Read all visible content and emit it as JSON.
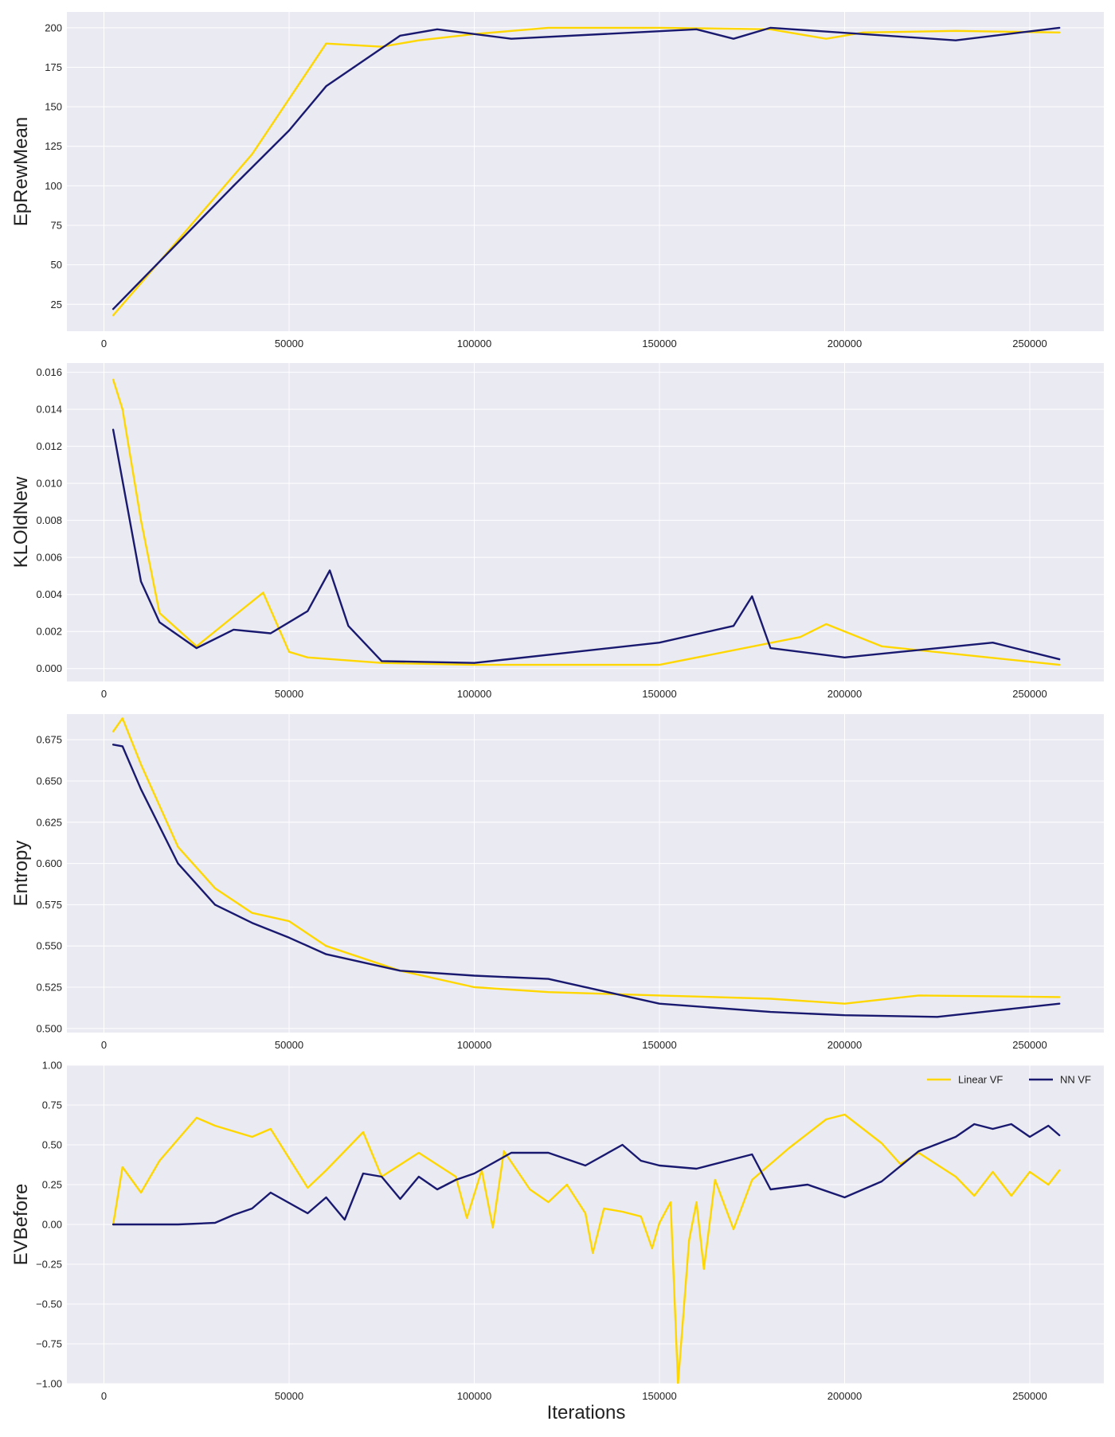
{
  "figure": {
    "xlabel": "Iterations",
    "legend": {
      "placement": "top-right",
      "entries": [
        "Linear VF",
        "NN VF"
      ]
    }
  },
  "colors": {
    "linear": "#FFD700",
    "nn": "#191970",
    "panel_bg": "#EAEAF2",
    "grid": "#FFFFFF",
    "tick_text": "#222222"
  },
  "chart_data": [
    {
      "type": "line",
      "ylabel": "EpRewMean",
      "xlim": [
        -10000,
        270000
      ],
      "ylim": [
        8,
        210
      ],
      "xticks": [
        0,
        50000,
        100000,
        150000,
        200000,
        250000
      ],
      "yticks": [
        25,
        50,
        75,
        100,
        125,
        150,
        175,
        200
      ],
      "ytick_labels": [
        "25",
        "50",
        "75",
        "100",
        "125",
        "150",
        "175",
        "200"
      ],
      "grid": true,
      "series": [
        {
          "name": "Linear VF",
          "x": [
            2500,
            40000,
            60000,
            75000,
            85000,
            100000,
            120000,
            150000,
            180000,
            195000,
            205000,
            230000,
            258000
          ],
          "y": [
            18,
            120,
            190,
            188,
            192,
            196,
            200,
            200,
            199,
            193,
            197,
            198,
            197
          ]
        },
        {
          "name": "NN VF",
          "x": [
            2500,
            35000,
            50000,
            60000,
            80000,
            90000,
            110000,
            160000,
            170000,
            180000,
            230000,
            258000
          ],
          "y": [
            22,
            100,
            135,
            163,
            195,
            199,
            193,
            199,
            193,
            200,
            192,
            200
          ]
        }
      ]
    },
    {
      "type": "line",
      "ylabel": "KLOldNew",
      "xlim": [
        -10000,
        270000
      ],
      "ylim": [
        -0.0007,
        0.0165
      ],
      "xticks": [
        0,
        50000,
        100000,
        150000,
        200000,
        250000
      ],
      "yticks": [
        0,
        0.002,
        0.004,
        0.006,
        0.008,
        0.01,
        0.012,
        0.014,
        0.016
      ],
      "ytick_labels": [
        "0.000",
        "0.002",
        "0.004",
        "0.006",
        "0.008",
        "0.010",
        "0.012",
        "0.014",
        "0.016"
      ],
      "grid": true,
      "series": [
        {
          "name": "Linear VF",
          "x": [
            2500,
            5000,
            10000,
            15000,
            25000,
            38000,
            43000,
            50000,
            55000,
            75000,
            100000,
            150000,
            188000,
            195000,
            210000,
            258000
          ],
          "y": [
            0.0156,
            0.014,
            0.008,
            0.003,
            0.0012,
            0.0033,
            0.0041,
            0.0009,
            0.0006,
            0.0003,
            0.0002,
            0.0002,
            0.0017,
            0.0024,
            0.0012,
            0.0002
          ]
        },
        {
          "name": "NN VF",
          "x": [
            2500,
            10000,
            15000,
            25000,
            35000,
            45000,
            55000,
            61000,
            66000,
            75000,
            100000,
            150000,
            170000,
            175000,
            180000,
            200000,
            240000,
            258000
          ],
          "y": [
            0.0129,
            0.0047,
            0.0025,
            0.0011,
            0.0021,
            0.0019,
            0.0031,
            0.0053,
            0.0023,
            0.0004,
            0.0003,
            0.0014,
            0.0023,
            0.0039,
            0.0011,
            0.0006,
            0.0014,
            0.0005
          ]
        }
      ]
    },
    {
      "type": "line",
      "ylabel": "Entropy",
      "xlim": [
        -10000,
        270000
      ],
      "ylim": [
        0.4975,
        0.6905
      ],
      "xticks": [
        0,
        50000,
        100000,
        150000,
        200000,
        250000
      ],
      "yticks": [
        0.5,
        0.525,
        0.55,
        0.575,
        0.6,
        0.625,
        0.65,
        0.675
      ],
      "ytick_labels": [
        "0.500",
        "0.525",
        "0.550",
        "0.575",
        "0.600",
        "0.625",
        "0.650",
        "0.675"
      ],
      "grid": true,
      "series": [
        {
          "name": "Linear VF",
          "x": [
            2500,
            5000,
            10000,
            20000,
            30000,
            40000,
            50000,
            60000,
            80000,
            100000,
            120000,
            150000,
            180000,
            200000,
            220000,
            258000
          ],
          "y": [
            0.68,
            0.688,
            0.66,
            0.61,
            0.585,
            0.57,
            0.565,
            0.55,
            0.535,
            0.525,
            0.522,
            0.52,
            0.518,
            0.515,
            0.52,
            0.519
          ]
        },
        {
          "name": "NN VF",
          "x": [
            2500,
            5000,
            10000,
            20000,
            30000,
            40000,
            50000,
            60000,
            80000,
            100000,
            120000,
            150000,
            180000,
            200000,
            225000,
            258000
          ],
          "y": [
            0.672,
            0.671,
            0.645,
            0.6,
            0.575,
            0.564,
            0.555,
            0.545,
            0.535,
            0.532,
            0.53,
            0.515,
            0.51,
            0.508,
            0.507,
            0.515
          ]
        }
      ]
    },
    {
      "type": "line",
      "ylabel": "EVBefore",
      "xlim": [
        -10000,
        270000
      ],
      "ylim": [
        -1.0,
        1.0
      ],
      "xticks": [
        0,
        50000,
        100000,
        150000,
        200000,
        250000
      ],
      "yticks": [
        -1.0,
        -0.75,
        -0.5,
        -0.25,
        0,
        0.25,
        0.5,
        0.75,
        1.0
      ],
      "ytick_labels": [
        "−1.00",
        "−0.75",
        "−0.50",
        "−0.25",
        "0.00",
        "0.25",
        "0.50",
        "0.75",
        "1.00"
      ],
      "grid": true,
      "series": [
        {
          "name": "Linear VF",
          "x": [
            2500,
            5000,
            10000,
            15000,
            25000,
            30000,
            40000,
            45000,
            55000,
            60000,
            70000,
            75000,
            85000,
            95000,
            98000,
            102000,
            105000,
            108000,
            115000,
            120000,
            125000,
            130000,
            132000,
            135000,
            140000,
            145000,
            148000,
            150000,
            153000,
            155000,
            158000,
            160000,
            162000,
            165000,
            170000,
            175000,
            185000,
            195000,
            200000,
            210000,
            215000,
            220000,
            230000,
            235000,
            240000,
            245000,
            250000,
            255000,
            258000
          ],
          "y": [
            0.0,
            0.36,
            0.2,
            0.4,
            0.67,
            0.62,
            0.55,
            0.6,
            0.23,
            0.34,
            0.58,
            0.3,
            0.45,
            0.3,
            0.04,
            0.34,
            -0.02,
            0.46,
            0.22,
            0.14,
            0.25,
            0.07,
            -0.18,
            0.1,
            0.08,
            0.05,
            -0.15,
            0.01,
            0.14,
            -1.0,
            -0.1,
            0.14,
            -0.28,
            0.28,
            -0.03,
            0.28,
            0.48,
            0.66,
            0.69,
            0.51,
            0.38,
            0.45,
            0.3,
            0.18,
            0.33,
            0.18,
            0.33,
            0.25,
            0.34
          ]
        },
        {
          "name": "NN VF",
          "x": [
            2500,
            10000,
            20000,
            30000,
            35000,
            40000,
            45000,
            55000,
            60000,
            65000,
            70000,
            75000,
            80000,
            85000,
            90000,
            95000,
            100000,
            110000,
            120000,
            130000,
            140000,
            145000,
            150000,
            160000,
            170000,
            175000,
            180000,
            190000,
            200000,
            210000,
            220000,
            230000,
            235000,
            240000,
            245000,
            250000,
            255000,
            258000
          ],
          "y": [
            0.0,
            0.0,
            0.0,
            0.01,
            0.06,
            0.1,
            0.2,
            0.07,
            0.17,
            0.03,
            0.32,
            0.3,
            0.16,
            0.3,
            0.22,
            0.28,
            0.32,
            0.45,
            0.45,
            0.37,
            0.5,
            0.4,
            0.37,
            0.35,
            0.41,
            0.44,
            0.22,
            0.25,
            0.17,
            0.27,
            0.46,
            0.55,
            0.63,
            0.6,
            0.63,
            0.55,
            0.62,
            0.56
          ]
        }
      ]
    }
  ]
}
